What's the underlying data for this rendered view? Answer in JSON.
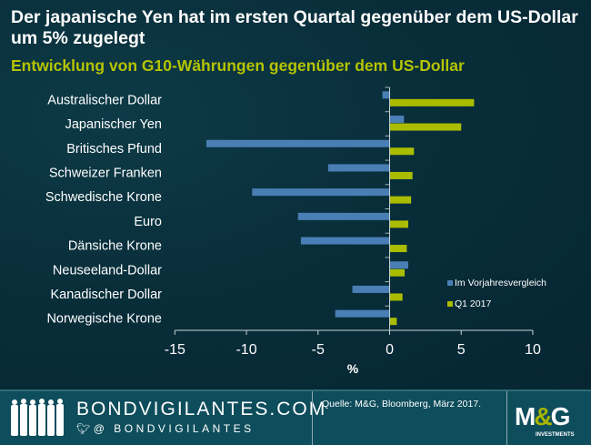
{
  "header": {
    "title": "Der japanische Yen hat im ersten Quartal gegenüber dem US-Dollar um 5% zugelegt",
    "subtitle": "Entwicklung von G10-Währungen gegenüber dem US-Dollar"
  },
  "chart_data": {
    "type": "bar",
    "orientation": "horizontal",
    "title": "Entwicklung von G10-Währungen gegenüber dem US-Dollar",
    "xlabel": "%",
    "ylabel": "",
    "xlim": [
      -15,
      10
    ],
    "xticks": [
      "-15",
      "-10",
      "-5",
      "0",
      "5",
      "10"
    ],
    "categories": [
      "Australischer Dollar",
      "Japanischer Yen",
      "Britisches Pfund",
      "Schweizer Franken",
      "Schwedische Krone",
      "Euro",
      "Dänsiche Krone",
      "Neuseeland-Dollar",
      "Kanadischer Dollar",
      "Norwegische Krone"
    ],
    "series": [
      {
        "name": "Im Vorjahresvergleich",
        "color": "#4a7fb5",
        "values": [
          -0.5,
          1.0,
          -12.8,
          -4.3,
          -9.6,
          -6.4,
          -6.2,
          1.3,
          -2.6,
          -3.8
        ]
      },
      {
        "name": "Q1 2017",
        "color": "#a9bc00",
        "values": [
          5.9,
          5.0,
          1.7,
          1.6,
          1.5,
          1.3,
          1.2,
          1.05,
          0.9,
          0.5
        ]
      }
    ],
    "legend_position": "bottom-right",
    "grid": false
  },
  "footer": {
    "brand": "BONDVIGILANTES.COM",
    "twitter": "@ BONDVIGILANTES",
    "source": "Quelle: M&G,  Bloomberg, März 2017.",
    "logo": "M&G",
    "logo_sub": "INVESTMENTS"
  }
}
